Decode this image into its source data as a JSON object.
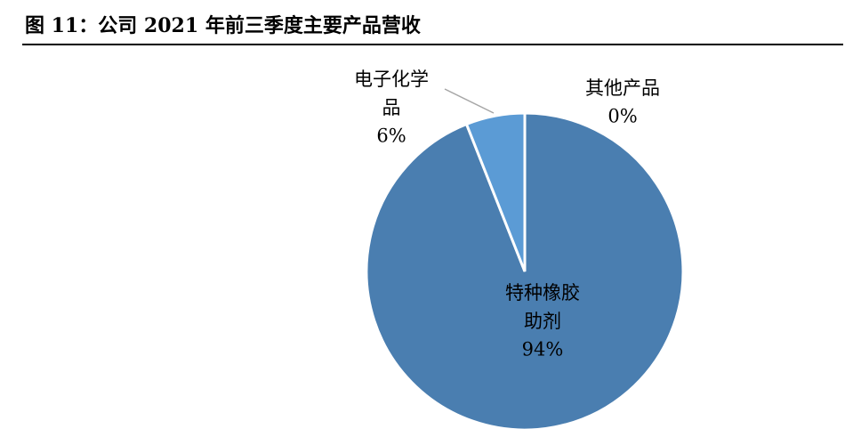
{
  "chart_data": {
    "type": "pie",
    "title": "图 11：公司 2021 年前三季度主要产品营收",
    "categories": [
      "特种橡胶助剂",
      "电子化学品",
      "其他产品"
    ],
    "values": [
      94,
      6,
      0
    ],
    "value_labels": [
      "94%",
      "6%",
      "0%"
    ],
    "colors": [
      "#4a7eb0",
      "#5b9bd5",
      "#a5c3e6"
    ]
  }
}
